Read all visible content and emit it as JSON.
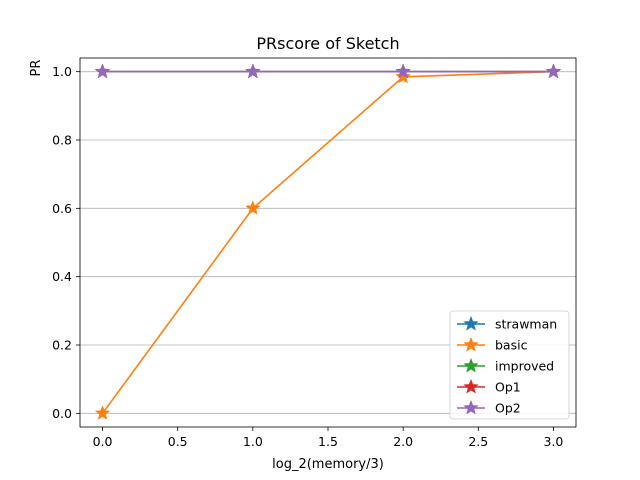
{
  "chart_data": {
    "type": "line",
    "title": "PRscore of Sketch",
    "xlabel": "log_2(memory/3)",
    "ylabel": "PR",
    "xlim": [
      -0.15,
      3.15
    ],
    "ylim": [
      -0.04,
      1.04
    ],
    "xticks": [
      0.0,
      0.5,
      1.0,
      1.5,
      2.0,
      2.5,
      3.0
    ],
    "yticks": [
      0.0,
      0.2,
      0.4,
      0.6,
      0.8,
      1.0
    ],
    "xtick_labels": [
      "0.0",
      "0.5",
      "1.0",
      "1.5",
      "2.0",
      "2.5",
      "3.0"
    ],
    "ytick_labels": [
      "0.0",
      "0.2",
      "0.4",
      "0.6",
      "0.8",
      "1.0"
    ],
    "grid": "horizontal",
    "legend_position": "lower-right",
    "marker": "star",
    "x": [
      0,
      1,
      2,
      3
    ],
    "series": [
      {
        "name": "strawman",
        "color": "#1f77b4",
        "values": [
          1.0,
          1.0,
          1.0,
          1.0
        ]
      },
      {
        "name": "basic",
        "color": "#ff7f0e",
        "values": [
          0.0,
          0.6,
          0.985,
          1.0
        ]
      },
      {
        "name": "improved",
        "color": "#2ca02c",
        "values": [
          1.0,
          1.0,
          1.0,
          1.0
        ]
      },
      {
        "name": "Op1",
        "color": "#d62728",
        "values": [
          1.0,
          1.0,
          1.0,
          1.0
        ]
      },
      {
        "name": "Op2",
        "color": "#9467bd",
        "values": [
          1.0,
          1.0,
          1.0,
          1.0
        ]
      }
    ]
  }
}
